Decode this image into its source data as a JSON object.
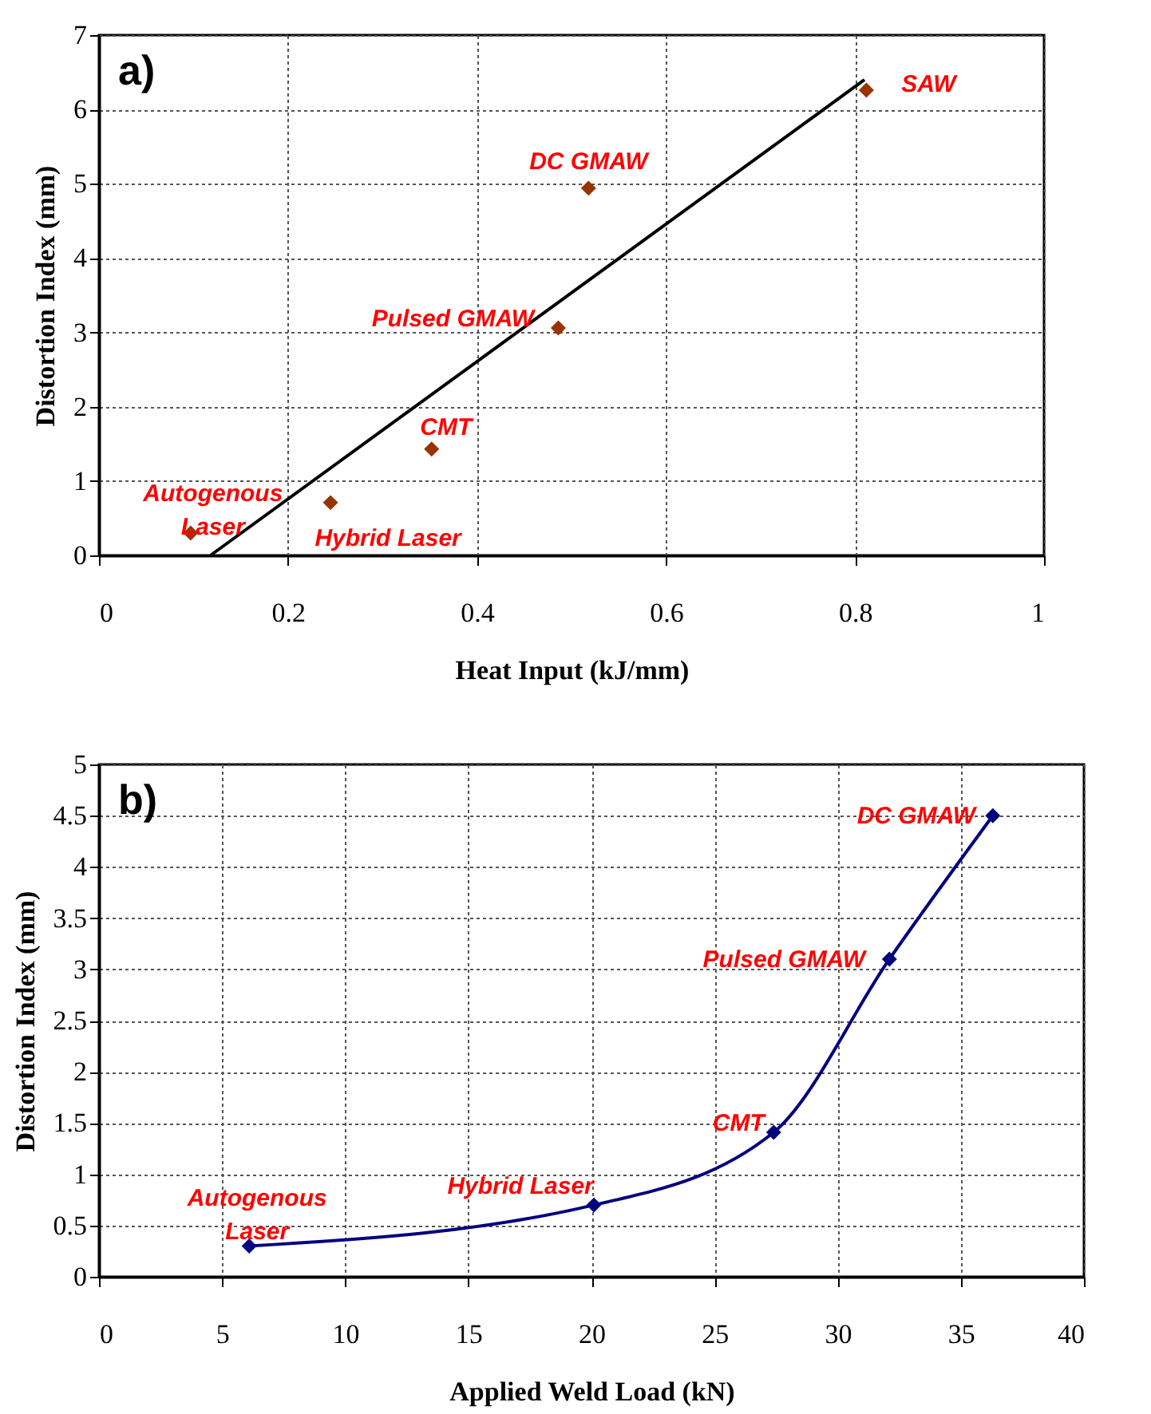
{
  "chart_data": [
    {
      "type": "scatter",
      "title": "a)",
      "xlabel": "Heat Input (kJ/mm)",
      "ylabel": "Distortion Index (mm)",
      "xlim": [
        0,
        1
      ],
      "ylim": [
        0,
        7
      ],
      "xticks": [
        0,
        0.2,
        0.4,
        0.6,
        0.8,
        1
      ],
      "yticks": [
        0,
        1,
        2,
        3,
        4,
        5,
        6,
        7
      ],
      "grid": true,
      "legend": false,
      "marker": "diamond",
      "series": [
        {
          "color": "#993300",
          "x": [
            0.097,
            0.245,
            0.352,
            0.486,
            0.518,
            0.812
          ],
          "values": [
            0.3,
            0.71,
            1.43,
            3.06,
            4.94,
            6.26
          ]
        },
        {
          "type": "line",
          "color": "#000000",
          "marker": "none",
          "x": [
            0.118,
            0.81
          ],
          "values": [
            0,
            6.4
          ]
        }
      ],
      "annotations": [
        {
          "text": "Autogenous\nLaser",
          "x": 0.097,
          "y": 0.3
        },
        {
          "text": "Hybrid Laser",
          "x": 0.245,
          "y": 0.71
        },
        {
          "text": "CMT",
          "x": 0.352,
          "y": 1.43
        },
        {
          "text": "Pulsed GMAW",
          "x": 0.486,
          "y": 3.06
        },
        {
          "text": "DC GMAW",
          "x": 0.518,
          "y": 4.94
        },
        {
          "text": "SAW",
          "x": 0.812,
          "y": 6.26
        }
      ]
    },
    {
      "type": "line",
      "title": "b)",
      "xlabel": "Applied Weld Load (kN)",
      "ylabel": "Distortion Index (mm)",
      "xlim": [
        0,
        40
      ],
      "ylim": [
        0,
        5
      ],
      "xticks": [
        0,
        5,
        10,
        15,
        20,
        25,
        30,
        35,
        40
      ],
      "yticks": [
        0,
        0.5,
        1,
        1.5,
        2,
        2.5,
        3,
        3.5,
        4,
        4.5,
        5
      ],
      "grid": true,
      "legend": false,
      "marker": "diamond",
      "series": [
        {
          "color": "#000080",
          "x": [
            6.1,
            20.1,
            27.4,
            32.1,
            36.3
          ],
          "values": [
            0.3,
            0.7,
            1.41,
            3.1,
            4.5
          ]
        }
      ],
      "annotations": [
        {
          "text": "Autogenous\nLaser",
          "x": 6.1,
          "y": 0.3
        },
        {
          "text": "Hybrid Laser",
          "x": 20.1,
          "y": 0.7
        },
        {
          "text": "CMT",
          "x": 27.4,
          "y": 1.41
        },
        {
          "text": "Pulsed GMAW",
          "x": 32.1,
          "y": 3.1
        },
        {
          "text": "DC GMAW",
          "x": 36.3,
          "y": 4.5
        }
      ]
    }
  ]
}
